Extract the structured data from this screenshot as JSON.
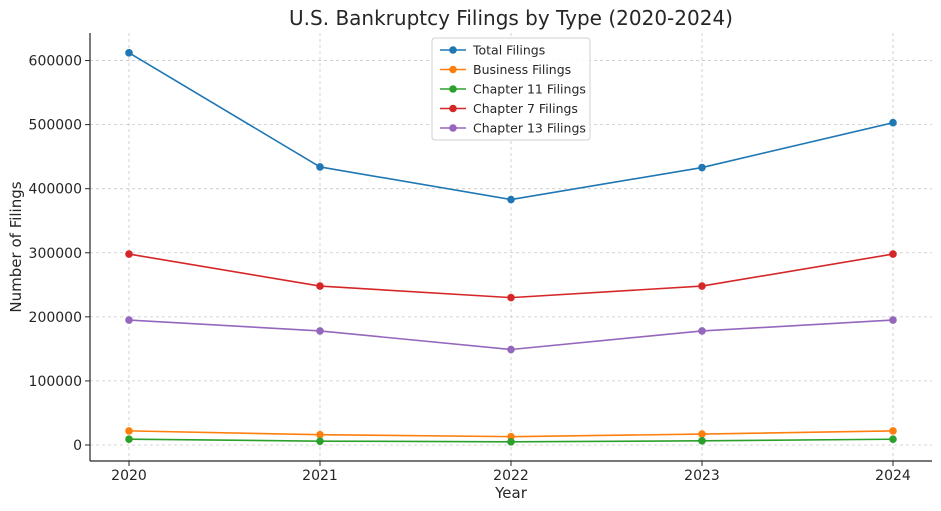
{
  "chart_data": {
    "type": "line",
    "title": "U.S. Bankruptcy Filings by Type (2020-2024)",
    "xlabel": "Year",
    "ylabel": "Number of Filings",
    "x": [
      "2020",
      "2021",
      "2022",
      "2023",
      "2024"
    ],
    "y_ticks": [
      "0",
      "100000",
      "200000",
      "300000",
      "400000",
      "500000",
      "600000"
    ],
    "ylim": [
      -25000,
      643000
    ],
    "grid": true,
    "legend_position": "top-center",
    "series": [
      {
        "name": "Total Filings",
        "color": "#1f77b4",
        "values": [
          612000,
          434000,
          383000,
          433000,
          503000
        ]
      },
      {
        "name": "Business Filings",
        "color": "#ff7f0e",
        "values": [
          22000,
          16000,
          13000,
          17000,
          22000
        ]
      },
      {
        "name": "Chapter 11 Filings",
        "color": "#2ca02c",
        "values": [
          9000,
          6000,
          5000,
          6500,
          9000
        ]
      },
      {
        "name": "Chapter 7 Filings",
        "color": "#d62728",
        "values": [
          298000,
          248000,
          230000,
          248000,
          298000
        ]
      },
      {
        "name": "Chapter 13 Filings",
        "color": "#9467bd",
        "values": [
          195000,
          178000,
          149000,
          178000,
          195000
        ]
      }
    ]
  }
}
